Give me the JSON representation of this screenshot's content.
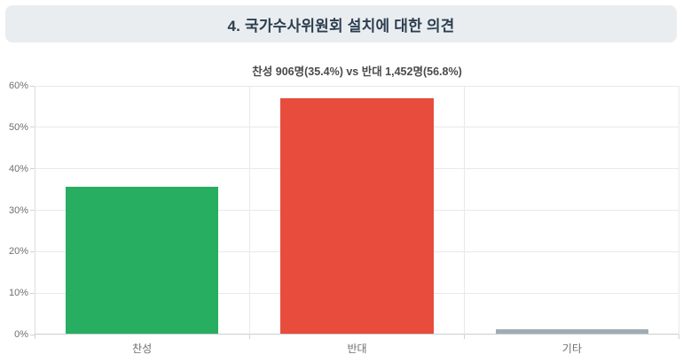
{
  "header": {
    "title": "4. 국가수사위원회 설치에 대한 의견",
    "bg_color": "#e9edef",
    "text_color": "#2c3e50"
  },
  "chart_data": {
    "type": "bar",
    "title": "찬성 906명(35.4%) vs 반대 1,452명(56.8%)",
    "categories": [
      "찬성",
      "반대",
      "기타"
    ],
    "category_keys": [
      "agree",
      "oppose",
      "other"
    ],
    "values": [
      35.4,
      56.8,
      1.0
    ],
    "bar_colors": [
      "#27ae60",
      "#e74c3c",
      "#9fadb3"
    ],
    "xlabel": "",
    "ylabel": "",
    "ylim": [
      0,
      60
    ],
    "ytick_step": 10,
    "ytick_labels": [
      "0%",
      "10%",
      "20%",
      "30%",
      "40%",
      "50%",
      "60%"
    ],
    "grid": true,
    "legend_position": "none"
  }
}
